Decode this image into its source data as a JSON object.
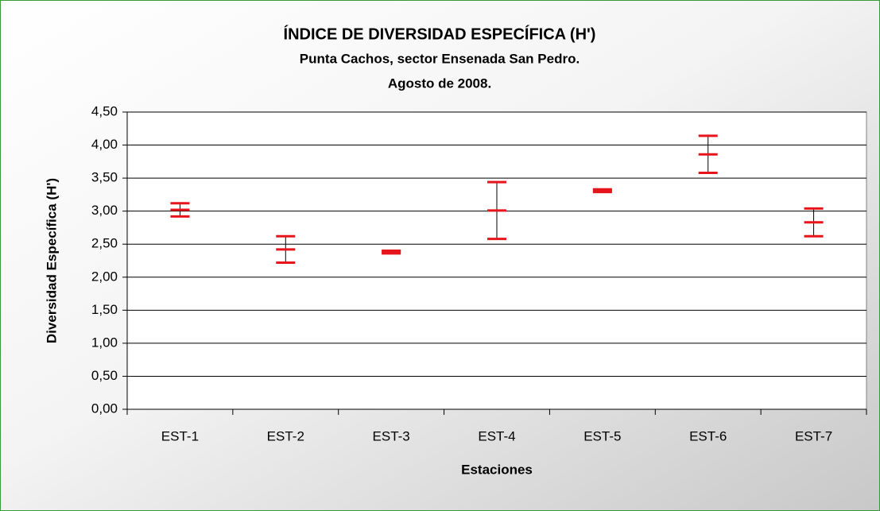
{
  "chart_data": {
    "type": "errorbar",
    "title": "ÍNDICE DE DIVERSIDAD ESPECÍFICA (H')",
    "subtitle": [
      "Punta Cachos, sector Ensenada San Pedro.",
      "Agosto de 2008."
    ],
    "x_label": "Estaciones",
    "y_label": "Diversidad Específica (H')",
    "categories": [
      "EST-1",
      "EST-2",
      "EST-3",
      "EST-4",
      "EST-5",
      "EST-6",
      "EST-7"
    ],
    "values": [
      3.02,
      2.42,
      2.38,
      3.01,
      3.31,
      3.86,
      2.83
    ],
    "errors": [
      0.1,
      0.2,
      0.02,
      0.43,
      0.02,
      0.28,
      0.21
    ],
    "color": "#e8141c",
    "ylim": [
      0,
      4.5
    ],
    "yticks": [
      {
        "value": 0,
        "label": "0,00"
      },
      {
        "value": 0.5,
        "label": "0,50"
      },
      {
        "value": 1,
        "label": "1,00"
      },
      {
        "value": 1.5,
        "label": "1,50"
      },
      {
        "value": 2,
        "label": "2,00"
      },
      {
        "value": 2.5,
        "label": "2,50"
      },
      {
        "value": 3,
        "label": "3,00"
      },
      {
        "value": 3.5,
        "label": "3,50"
      },
      {
        "value": 4,
        "label": "4,00"
      },
      {
        "value": 4.5,
        "label": "4,50"
      }
    ],
    "grid": true
  }
}
